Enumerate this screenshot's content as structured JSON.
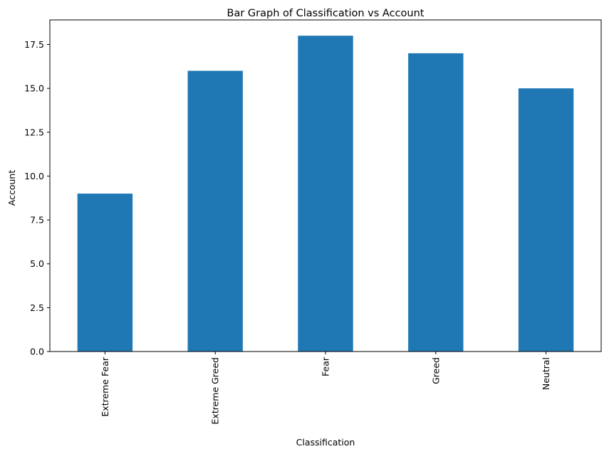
{
  "chart_data": {
    "type": "bar",
    "title": "Bar Graph of Classification vs Account",
    "xlabel": "Classification",
    "ylabel": "Account",
    "categories": [
      "Extreme Fear",
      "Extreme Greed",
      "Fear",
      "Greed",
      "Neutral"
    ],
    "values": [
      9,
      16,
      18,
      17,
      15
    ],
    "ylim": [
      0,
      18.9
    ],
    "yticks": [
      0.0,
      2.5,
      5.0,
      7.5,
      10.0,
      12.5,
      15.0,
      17.5
    ],
    "ytick_labels": [
      "0.0",
      "2.5",
      "5.0",
      "7.5",
      "10.0",
      "12.5",
      "15.0",
      "17.5"
    ],
    "grid": false,
    "legend": "none",
    "bar_color": "#1f77b4"
  }
}
